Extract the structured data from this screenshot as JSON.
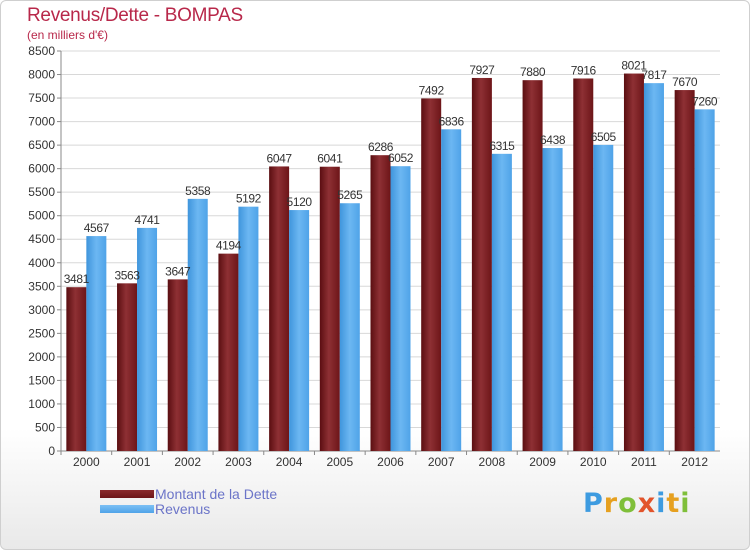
{
  "header": {
    "title": "Revenus/Dette - BOMPAS",
    "subtitle": "(en milliers d'€)"
  },
  "logo": {
    "text": "Proxiti"
  },
  "colors": {
    "series_0": "#6d1518",
    "series_1": "#4fa3e8",
    "title": "#b8284a",
    "legend_text": "#6b74c8"
  },
  "chart_data": {
    "type": "bar",
    "title": "Revenus/Dette - BOMPAS",
    "subtitle": "(en milliers d'€)",
    "xlabel": "",
    "ylabel": "",
    "categories": [
      "2000",
      "2001",
      "2002",
      "2003",
      "2004",
      "2005",
      "2006",
      "2007",
      "2008",
      "2009",
      "2010",
      "2011",
      "2012"
    ],
    "series": [
      {
        "name": "Montant de la Dette",
        "values": [
          3481,
          3563,
          3647,
          4194,
          6047,
          6041,
          6286,
          7492,
          7927,
          7880,
          7916,
          8021,
          7670
        ]
      },
      {
        "name": "Revenus",
        "values": [
          4567,
          4741,
          5358,
          5192,
          5120,
          5265,
          6052,
          6836,
          6315,
          6438,
          6505,
          7817,
          7260
        ]
      }
    ],
    "ylim": [
      0,
      8500
    ],
    "yticks": [
      0,
      500,
      1000,
      1500,
      2000,
      2500,
      3000,
      3500,
      4000,
      4500,
      5000,
      5500,
      6000,
      6500,
      7000,
      7500,
      8000,
      8500
    ],
    "grid": true,
    "legend_position": "bottom-left"
  }
}
